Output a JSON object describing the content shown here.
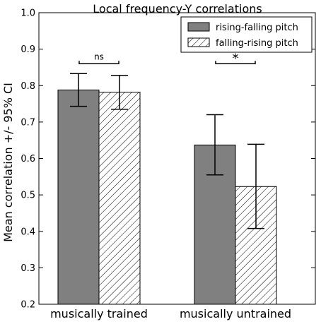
{
  "chart_data": {
    "type": "bar",
    "title": "Local frequency-Y correlations",
    "ylabel": "Mean correlation +/- 95% CI",
    "xlabel": "",
    "ylim": [
      0.2,
      1.0
    ],
    "yticks": [
      "0.2",
      "0.3",
      "0.4",
      "0.5",
      "0.6",
      "0.7",
      "0.8",
      "0.9",
      "1.0"
    ],
    "categories": [
      "musically trained",
      "musically untrained"
    ],
    "series": [
      {
        "name": "rising-falling pitch",
        "fill": "gray",
        "color": "#808080",
        "values": [
          0.788,
          0.637
        ],
        "ci_low": [
          0.743,
          0.555
        ],
        "ci_high": [
          0.833,
          0.72
        ]
      },
      {
        "name": "falling-rising pitch",
        "fill": "hatched",
        "color": "#ffffff",
        "values": [
          0.782,
          0.523
        ],
        "ci_low": [
          0.735,
          0.408
        ],
        "ci_high": [
          0.828,
          0.639
        ]
      }
    ],
    "significance": [
      {
        "category": "musically trained",
        "label": "ns",
        "y": 0.86
      },
      {
        "category": "musically untrained",
        "label": "*",
        "y": 0.86
      }
    ],
    "legend": {
      "placement": "top-right"
    },
    "grid": false
  }
}
